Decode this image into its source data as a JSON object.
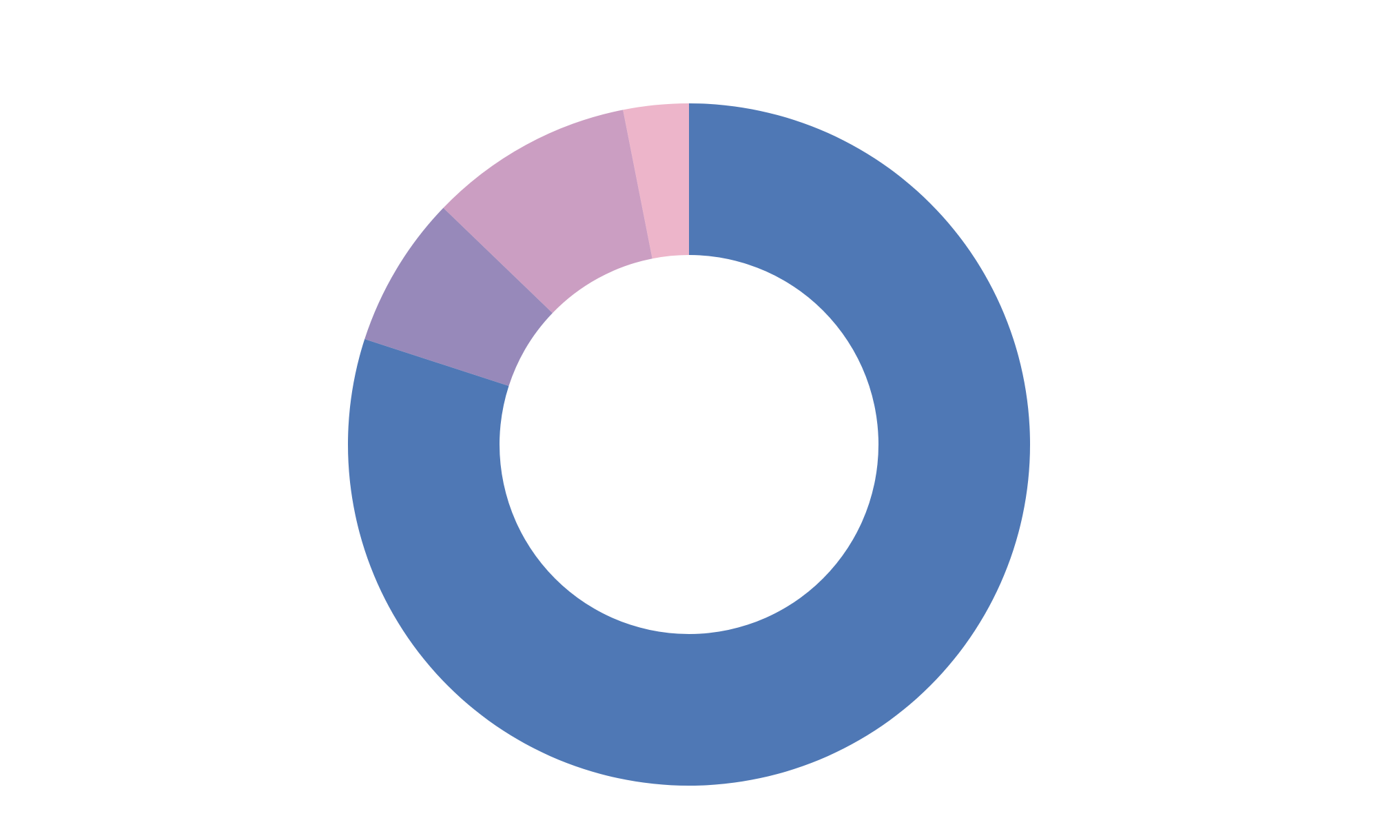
{
  "chart_data": {
    "type": "pie",
    "variant": "donut",
    "slices": [
      {
        "value": 80.0,
        "color": "#4f78b5"
      },
      {
        "value": 7.2,
        "color": "#9789ba"
      },
      {
        "value": 9.7,
        "color": "#cb9ec2"
      },
      {
        "value": 3.1,
        "color": "#edb5ca"
      }
    ],
    "start": "top",
    "direction": "clockwise",
    "legend": "none",
    "title": "",
    "labels": []
  }
}
